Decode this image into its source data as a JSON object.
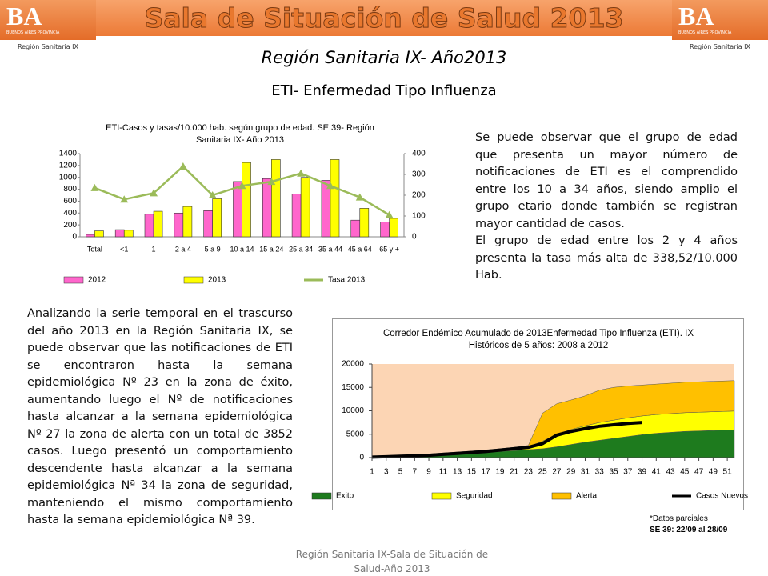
{
  "header": {
    "title": "Sala de Situación de Salud 2013",
    "logo_text": "BA",
    "logo_sub": "BUENOS AIRES PROVINCIA",
    "logo_region": "Región Sanitaria IX"
  },
  "subtitle": "Región Sanitaria IX- Año2013",
  "heading": "ETI- Enfermedad Tipo Influenza",
  "right_text": [
    "Se puede observar que el grupo de edad que presenta un mayor número de notificaciones de ETI es el comprendido entre los 10 a 34 años, siendo amplio el grupo etario donde también se registran mayor cantidad de casos.",
    "El grupo de edad entre los 2 y 4 años presenta la tasa más alta de 338,52/10.000 Hab."
  ],
  "left_text": "Analizando la serie temporal en el trascurso del año 2013 en la Región Sanitaria IX, se puede  observar que las notificaciones de ETI se encontraron hasta la semana epidemiológica Nº 23 en la zona de éxito, aumentando luego el Nº de notificaciones hasta alcanzar a la semana epidemiológica Nº 27 la zona de alerta con un total de 3852 casos. Luego presentó un comportamiento descendente hasta alcanzar a la semana epidemiológica Nª 34 la zona de seguridad, manteniendo el mismo comportamiento hasta la semana epidemiológica Nª 39.",
  "note": [
    "*Datos parciales",
    "SE  39:  22/09 al  28/09"
  ],
  "footer": "Región Sanitaria IX-Sala de Situación de Salud-Año 2013",
  "chart_data": [
    {
      "type": "bar",
      "title": "ETI-Casos y tasas/10.000 hab. según grupo de edad. SE 39- Región Sanitaria IX- Año 2013",
      "categories": [
        "Total",
        "<1",
        "1",
        "2 a 4",
        "5 a 9",
        "10 a 14",
        "15 a 24",
        "25 a 34",
        "35 a 44",
        "45 a 64",
        "65 y +"
      ],
      "series": [
        {
          "name": "2012",
          "color": "#ff66cc",
          "values": [
            40,
            120,
            380,
            400,
            440,
            930,
            980,
            720,
            950,
            280,
            250
          ]
        },
        {
          "name": "2013",
          "color": "#ffff00",
          "values": [
            100,
            110,
            430,
            510,
            640,
            1250,
            1300,
            1000,
            1300,
            480,
            310
          ]
        },
        {
          "name": "Tasa 2013",
          "color": "#9bbb59",
          "type": "line",
          "axis": "y2",
          "values": [
            235,
            180,
            210,
            338.52,
            200,
            245,
            265,
            305,
            245,
            190,
            105
          ]
        }
      ],
      "ylim": [
        0,
        1400
      ],
      "yticks": [
        0,
        200,
        400,
        600,
        800,
        1000,
        1200,
        1400
      ],
      "y2lim": [
        0,
        400
      ],
      "y2ticks": [
        0,
        100,
        200,
        300,
        400
      ],
      "legend": "bottom"
    },
    {
      "type": "area",
      "stacked": true,
      "title": "Corredor Endémico Acumulado de 2013Enfermedad Tipo Influenza (ETI).   IX Históricos de 5 años: 2008 a 2012",
      "x": [
        1,
        3,
        5,
        7,
        9,
        11,
        13,
        15,
        17,
        19,
        21,
        23,
        25,
        27,
        29,
        31,
        33,
        35,
        37,
        39,
        41,
        43,
        45,
        47,
        49,
        51,
        52
      ],
      "series": [
        {
          "name": "Exito",
          "color": "#1e7b1e",
          "values": [
            200,
            250,
            350,
            400,
            500,
            650,
            800,
            950,
            1100,
            1300,
            1500,
            1700,
            1900,
            2300,
            2800,
            3300,
            3700,
            4100,
            4500,
            4900,
            5200,
            5400,
            5600,
            5700,
            5800,
            5900,
            5950
          ]
        },
        {
          "name": "Seguridad",
          "color": "#ffff00",
          "values": [
            100,
            150,
            150,
            200,
            250,
            250,
            300,
            350,
            400,
            450,
            500,
            600,
            1600,
            2700,
            3200,
            3500,
            3800,
            3900,
            4000,
            4000,
            4000,
            4000,
            4000,
            4000,
            4000,
            4000,
            4000
          ]
        },
        {
          "name": "Alerta",
          "color": "#ffc000",
          "values": [
            50,
            50,
            50,
            50,
            50,
            100,
            100,
            100,
            150,
            150,
            200,
            300,
            6000,
            6500,
            6300,
            6400,
            6900,
            7000,
            6800,
            6600,
            6500,
            6500,
            6500,
            6500,
            6500,
            6500,
            6500
          ]
        },
        {
          "name": "Casos Nuevos",
          "color": "#000000",
          "type": "line",
          "values": [
            100,
            200,
            300,
            400,
            500,
            700,
            900,
            1100,
            1300,
            1600,
            1900,
            2200,
            3000,
            4800,
            5600,
            6200,
            6700,
            7000,
            7300,
            7500,
            null,
            null,
            null,
            null,
            null,
            null,
            null
          ]
        }
      ],
      "xlim": [
        1,
        52
      ],
      "xticks": [
        1,
        3,
        5,
        7,
        9,
        11,
        13,
        15,
        17,
        19,
        21,
        23,
        25,
        27,
        29,
        31,
        33,
        35,
        37,
        39,
        41,
        43,
        45,
        47,
        49,
        51
      ],
      "ylim": [
        0,
        20000
      ],
      "yticks": [
        0,
        5000,
        10000,
        15000,
        20000
      ],
      "background": "#fcd5b4",
      "legend": "bottom"
    }
  ]
}
